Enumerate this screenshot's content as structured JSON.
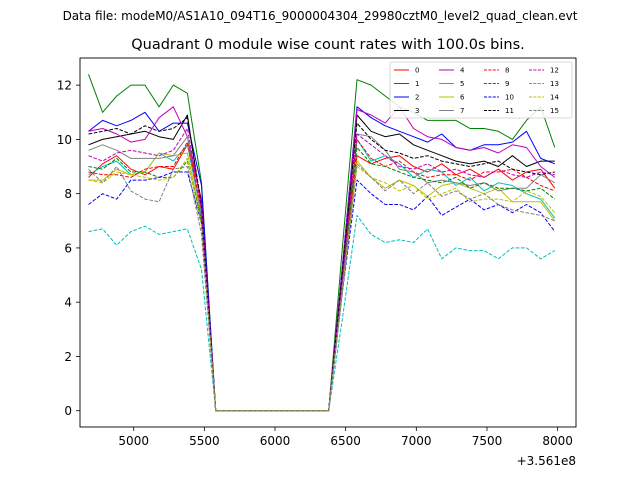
{
  "chart_data": {
    "type": "line",
    "suptitle": "Data file: modeM0/AS1A10_094T16_9000004304_29980cztM0_level2_quad_clean.evt",
    "title": "Quadrant 0 module wise count rates with 100.0s bins.",
    "xlabel": "",
    "ylabel": "",
    "x_offset_label": "+3.561e8",
    "xlim": [
      4620,
      8130
    ],
    "ylim": [
      -0.6,
      13.0
    ],
    "xticks": [
      5000,
      5500,
      6000,
      6500,
      7000,
      7500,
      8000
    ],
    "yticks": [
      0,
      2,
      4,
      6,
      8,
      10,
      12
    ],
    "legend_position": "top-right",
    "x": [
      4680,
      4780,
      4880,
      4980,
      5080,
      5180,
      5280,
      5380,
      5480,
      5580,
      5680,
      5780,
      5880,
      5980,
      6080,
      6180,
      6280,
      6380,
      6480,
      6580,
      6680,
      6780,
      6880,
      6980,
      7080,
      7180,
      7280,
      7380,
      7480,
      7580,
      7680,
      7780,
      7880,
      7980
    ],
    "series": [
      {
        "name": "0",
        "color": "#ff0000",
        "dash": "solid",
        "values": [
          8.6,
          9.1,
          9.4,
          8.9,
          8.7,
          9.0,
          8.9,
          9.8,
          7.8,
          0,
          0,
          0,
          0,
          0,
          0,
          0,
          0,
          0,
          4.8,
          9.4,
          9.1,
          9.3,
          9.4,
          9.0,
          8.8,
          9.1,
          8.7,
          8.9,
          8.6,
          8.9,
          8.5,
          8.8,
          8.9,
          8.2
        ]
      },
      {
        "name": "1",
        "color": "#008000",
        "dash": "solid",
        "values": [
          12.4,
          11.0,
          11.6,
          12.0,
          12.0,
          11.2,
          12.0,
          11.7,
          8.4,
          0,
          0,
          0,
          0,
          0,
          0,
          0,
          0,
          0,
          6.2,
          12.2,
          12.0,
          11.6,
          11.2,
          11.0,
          10.7,
          10.7,
          10.7,
          10.4,
          10.4,
          10.3,
          10.0,
          10.7,
          11.2,
          9.7
        ]
      },
      {
        "name": "2",
        "color": "#0000ff",
        "dash": "solid",
        "values": [
          10.3,
          10.7,
          10.5,
          10.7,
          11.0,
          10.3,
          10.6,
          10.6,
          8.3,
          0,
          0,
          0,
          0,
          0,
          0,
          0,
          0,
          0,
          5.5,
          11.2,
          10.8,
          10.5,
          10.3,
          10.1,
          9.9,
          10.2,
          9.7,
          9.6,
          9.8,
          9.8,
          9.9,
          10.3,
          9.3,
          9.1
        ]
      },
      {
        "name": "3",
        "color": "#000000",
        "dash": "solid",
        "values": [
          9.8,
          10.0,
          10.1,
          10.2,
          10.3,
          10.1,
          10.0,
          10.9,
          7.4,
          0,
          0,
          0,
          0,
          0,
          0,
          0,
          0,
          0,
          5.1,
          10.9,
          10.3,
          10.1,
          10.2,
          9.8,
          9.6,
          9.4,
          9.2,
          9.1,
          9.2,
          9.0,
          9.4,
          9.0,
          9.2,
          9.2
        ]
      },
      {
        "name": "4",
        "color": "#bf00bf",
        "dash": "solid",
        "values": [
          10.3,
          10.4,
          10.2,
          9.9,
          10.0,
          10.8,
          11.2,
          10.1,
          7.7,
          0,
          0,
          0,
          0,
          0,
          0,
          0,
          0,
          0,
          5.4,
          11.1,
          10.9,
          10.6,
          11.2,
          10.4,
          10.1,
          10.0,
          9.7,
          9.6,
          9.7,
          9.5,
          9.8,
          9.7,
          9.0,
          8.6
        ]
      },
      {
        "name": "5",
        "color": "#00bfbf",
        "dash": "solid",
        "values": [
          8.7,
          9.0,
          9.2,
          8.7,
          8.8,
          9.5,
          9.2,
          9.8,
          7.2,
          0,
          0,
          0,
          0,
          0,
          0,
          0,
          0,
          0,
          4.8,
          10.0,
          9.2,
          9.4,
          9.1,
          8.6,
          8.9,
          8.8,
          8.3,
          8.6,
          8.1,
          8.4,
          8.3,
          8.0,
          7.8,
          7.1
        ]
      },
      {
        "name": "6",
        "color": "#bfbf00",
        "dash": "solid",
        "values": [
          8.5,
          8.5,
          8.9,
          8.7,
          8.8,
          9.5,
          9.4,
          9.5,
          7.0,
          0,
          0,
          0,
          0,
          0,
          0,
          0,
          0,
          0,
          4.6,
          9.2,
          8.6,
          8.2,
          8.5,
          8.3,
          7.9,
          8.3,
          8.4,
          8.2,
          8.0,
          8.2,
          7.7,
          7.7,
          7.7,
          7.0
        ]
      },
      {
        "name": "7",
        "color": "#808080",
        "dash": "solid",
        "values": [
          9.6,
          9.8,
          9.6,
          9.3,
          9.3,
          9.3,
          9.4,
          10.1,
          7.1,
          0,
          0,
          0,
          0,
          0,
          0,
          0,
          0,
          0,
          4.7,
          10.2,
          10.1,
          9.6,
          8.9,
          8.8,
          8.4,
          8.5,
          8.4,
          8.3,
          8.4,
          8.1,
          8.2,
          8.2,
          8.7,
          8.4
        ]
      },
      {
        "name": "8",
        "color": "#ff0000",
        "dash": "dashed",
        "values": [
          8.8,
          8.7,
          8.7,
          8.6,
          8.9,
          9.0,
          9.0,
          9.9,
          7.4,
          0,
          0,
          0,
          0,
          0,
          0,
          0,
          0,
          0,
          5.2,
          10.0,
          9.3,
          9.0,
          9.2,
          8.8,
          8.6,
          8.7,
          8.7,
          8.5,
          8.8,
          8.8,
          8.9,
          8.6,
          8.3,
          8.1
        ]
      },
      {
        "name": "9",
        "color": "#008000",
        "dash": "dashed",
        "values": [
          9.0,
          8.9,
          9.3,
          8.8,
          8.8,
          8.6,
          8.6,
          9.2,
          7.0,
          0,
          0,
          0,
          0,
          0,
          0,
          0,
          0,
          0,
          5.0,
          9.7,
          9.1,
          9.0,
          8.8,
          8.6,
          8.5,
          8.4,
          8.6,
          8.2,
          8.4,
          8.2,
          8.2,
          8.1,
          8.2,
          7.8
        ]
      },
      {
        "name": "10",
        "color": "#0000ff",
        "dash": "dashed",
        "values": [
          7.6,
          8.0,
          7.8,
          8.5,
          8.5,
          8.6,
          8.8,
          8.8,
          6.9,
          0,
          0,
          0,
          0,
          0,
          0,
          0,
          0,
          0,
          4.5,
          8.5,
          8.0,
          7.6,
          7.6,
          7.4,
          7.9,
          7.2,
          7.5,
          7.8,
          7.4,
          7.6,
          7.3,
          7.6,
          7.3,
          6.6
        ]
      },
      {
        "name": "11",
        "color": "#000000",
        "dash": "dashed",
        "values": [
          10.2,
          10.3,
          10.4,
          10.2,
          10.5,
          10.3,
          10.4,
          10.8,
          7.6,
          0,
          0,
          0,
          0,
          0,
          0,
          0,
          0,
          0,
          5.3,
          10.6,
          10.0,
          9.6,
          9.5,
          9.3,
          9.4,
          9.2,
          9.1,
          9.0,
          9.1,
          9.2,
          8.9,
          8.8,
          8.7,
          8.8
        ]
      },
      {
        "name": "12",
        "color": "#bf00bf",
        "dash": "dashed",
        "values": [
          9.4,
          9.2,
          9.5,
          9.6,
          9.5,
          9.4,
          9.6,
          10.4,
          7.5,
          0,
          0,
          0,
          0,
          0,
          0,
          0,
          0,
          0,
          5.0,
          10.2,
          9.8,
          9.4,
          9.0,
          8.9,
          9.1,
          8.8,
          8.9,
          8.7,
          8.6,
          8.9,
          8.7,
          8.6,
          8.8,
          8.7
        ]
      },
      {
        "name": "13",
        "color": "#00bfbf",
        "dash": "dashed",
        "values": [
          6.6,
          6.7,
          6.1,
          6.6,
          6.8,
          6.5,
          6.6,
          6.7,
          5.2,
          0,
          0,
          0,
          0,
          0,
          0,
          0,
          0,
          0,
          3.5,
          7.2,
          6.5,
          6.2,
          6.3,
          6.2,
          6.7,
          5.6,
          6.0,
          5.9,
          5.9,
          5.6,
          6.0,
          6.0,
          5.6,
          5.9
        ]
      },
      {
        "name": "14",
        "color": "#bfbf00",
        "dash": "dashed",
        "values": [
          8.5,
          8.4,
          8.8,
          8.7,
          8.6,
          8.5,
          8.6,
          9.3,
          6.8,
          0,
          0,
          0,
          0,
          0,
          0,
          0,
          0,
          0,
          4.6,
          9.0,
          8.6,
          8.4,
          8.1,
          8.3,
          7.8,
          8.0,
          8.2,
          7.7,
          7.8,
          7.8,
          7.7,
          8.1,
          7.9,
          7.3
        ]
      },
      {
        "name": "15",
        "color": "#808080",
        "dash": "dashed",
        "values": [
          8.9,
          8.4,
          9.0,
          8.1,
          7.8,
          7.7,
          8.9,
          9.0,
          6.5,
          0,
          0,
          0,
          0,
          0,
          0,
          0,
          0,
          0,
          4.5,
          9.1,
          8.6,
          8.1,
          8.5,
          8.0,
          8.4,
          7.9,
          8.1,
          7.8,
          8.0,
          7.6,
          7.4,
          7.3,
          7.2,
          7.0
        ]
      }
    ]
  }
}
